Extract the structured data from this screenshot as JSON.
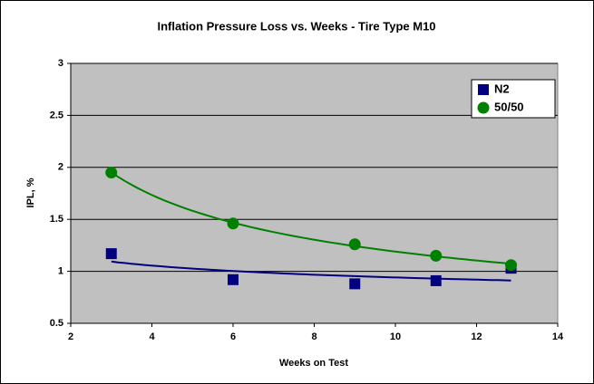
{
  "chart_data": {
    "type": "scatter",
    "title": "Inflation Pressure Loss vs. Weeks - Tire Type M10",
    "x_label": "Weeks on Test",
    "y_label": "IPL, %",
    "series": [
      {
        "name": "N2",
        "color": "#000080",
        "marker": "square",
        "x": [
          3,
          6,
          9,
          11,
          12.85
        ],
        "values": [
          1.17,
          0.92,
          0.88,
          0.91,
          1.03
        ]
      },
      {
        "name": "50/50",
        "color": "#008000",
        "marker": "circle",
        "x": [
          3,
          6,
          9,
          11,
          12.85
        ],
        "values": [
          1.95,
          1.46,
          1.26,
          1.15,
          1.06
        ]
      }
    ],
    "trendline": "power",
    "xlim": [
      2,
      14
    ],
    "xticks": [
      2,
      4,
      6,
      8,
      10,
      12,
      14
    ],
    "ylim": [
      0.5,
      3
    ],
    "yticks": [
      0.5,
      1,
      1.5,
      2,
      2.5,
      3
    ],
    "grid": true,
    "legend": "top-right"
  }
}
